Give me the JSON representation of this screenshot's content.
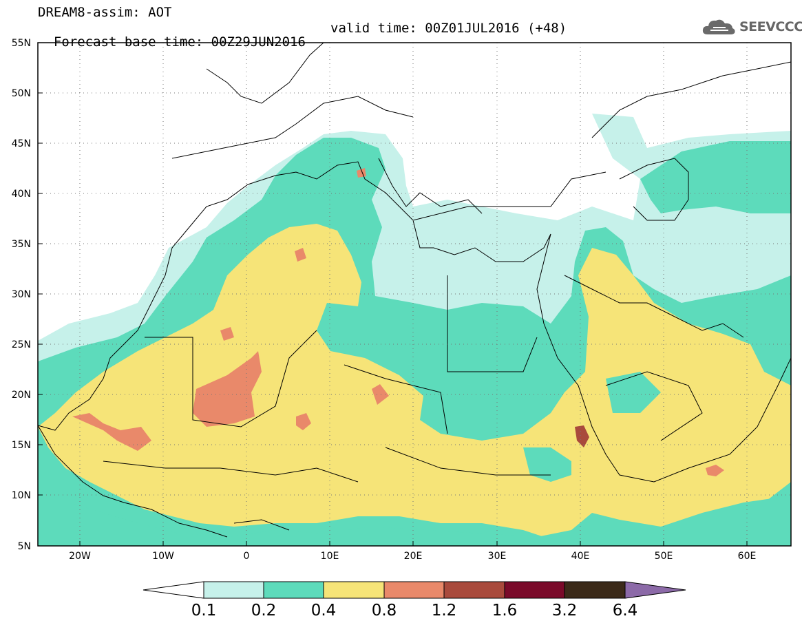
{
  "title": {
    "line1": "DREAM8-assim: AOT",
    "line2_base": "Forecast base time: 00Z29JUN2016",
    "line2_valid": "valid time: 00Z01JUL2016 (+48)"
  },
  "logo": {
    "text": "SEEVCCC",
    "icon": "cloud-icon"
  },
  "lon_ticks": [
    "20W",
    "10W",
    "0",
    "10E",
    "20E",
    "30E",
    "40E",
    "50E",
    "60E"
  ],
  "lat_ticks": [
    "55N",
    "50N",
    "45N",
    "40N",
    "35N",
    "30N",
    "25N",
    "20N",
    "15N",
    "10N",
    "5N"
  ],
  "colorbar": {
    "labels": [
      "0.1",
      "0.2",
      "0.4",
      "0.8",
      "1.2",
      "1.6",
      "3.2",
      "6.4"
    ],
    "colors": [
      "#ffffff",
      "#c6f1ea",
      "#5ddbbb",
      "#f6e478",
      "#e9896a",
      "#a94a3c",
      "#7a0a2a",
      "#3b2a19",
      "#8c6aa8"
    ]
  },
  "colors": {
    "level1": "#c6f1ea",
    "level2": "#5ddbbb",
    "level3": "#f6e478",
    "level4": "#e9896a",
    "level5": "#a94a3c"
  }
}
